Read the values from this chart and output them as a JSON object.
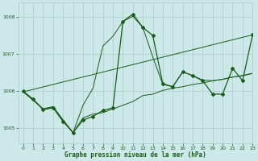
{
  "title": "Graphe pression niveau de la mer (hPa)",
  "background_color": "#cce8e8",
  "grid_color": "#aacccc",
  "line_color": "#1a5c1a",
  "xlim": [
    -0.5,
    23
  ],
  "ylim": [
    1004.6,
    1008.4
  ],
  "yticks": [
    1005,
    1006,
    1007,
    1008
  ],
  "xticks": [
    0,
    1,
    2,
    3,
    4,
    5,
    6,
    7,
    8,
    9,
    10,
    11,
    12,
    13,
    14,
    15,
    16,
    17,
    18,
    19,
    20,
    21,
    22,
    23
  ],
  "series_main_x": [
    0,
    1,
    2,
    3,
    4,
    5,
    6,
    7,
    8,
    9,
    10,
    11,
    12,
    13,
    14,
    15,
    16,
    17,
    18,
    19,
    20,
    21,
    22,
    23
  ],
  "series_main_y": [
    1006.0,
    1005.78,
    1005.5,
    1005.55,
    1005.18,
    1004.88,
    1005.22,
    1005.32,
    1005.48,
    1005.55,
    1007.88,
    1008.08,
    1007.72,
    1007.5,
    1006.2,
    1006.12,
    1006.52,
    1006.42,
    1006.28,
    1005.92,
    1005.92,
    1006.62,
    1006.28,
    1007.52
  ],
  "series_smooth1_x": [
    0,
    1,
    2,
    3,
    4,
    5,
    6,
    7,
    8,
    9,
    10,
    11,
    12,
    13,
    14,
    15,
    16,
    17,
    18,
    19,
    20,
    21,
    22,
    23
  ],
  "series_smooth1_y": [
    1005.98,
    1005.75,
    1005.52,
    1005.58,
    1005.22,
    1004.88,
    1005.62,
    1006.08,
    1007.22,
    1007.48,
    1007.88,
    1008.02,
    1007.72,
    1006.92,
    1006.18,
    1006.12,
    1006.52,
    1006.42,
    1006.3,
    1006.28,
    1006.32,
    1006.38,
    1006.42,
    1006.48
  ],
  "series_smooth2_x": [
    0,
    1,
    2,
    3,
    4,
    5,
    6,
    7,
    8,
    9,
    10,
    11,
    12,
    13,
    14,
    15,
    16,
    17,
    18,
    19,
    20,
    21,
    22,
    23
  ],
  "series_smooth2_y": [
    1005.98,
    1005.78,
    1005.52,
    1005.58,
    1005.22,
    1004.88,
    1005.28,
    1005.38,
    1005.42,
    1005.52,
    1005.62,
    1005.72,
    1005.88,
    1005.92,
    1006.02,
    1006.08,
    1006.12,
    1006.18,
    1006.22,
    1006.28,
    1006.32,
    1006.38,
    1006.42,
    1006.48
  ],
  "series_trend_x": [
    0,
    23
  ],
  "series_trend_y": [
    1005.98,
    1007.52
  ]
}
